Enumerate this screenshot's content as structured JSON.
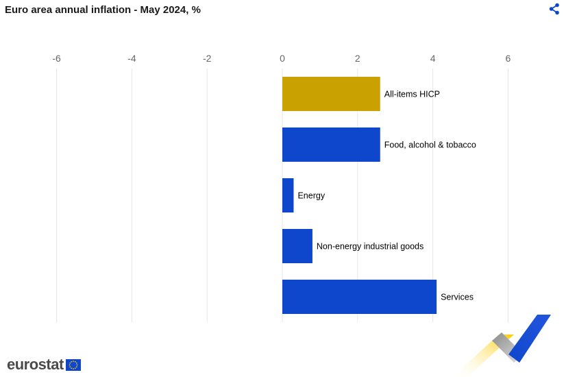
{
  "header": {
    "title": "Euro area annual inflation - May 2024, %",
    "share_icon": "share-icon"
  },
  "chart_data": {
    "type": "bar",
    "orientation": "horizontal",
    "title": "Euro area annual inflation - May 2024, %",
    "xlabel": "",
    "ylabel": "",
    "xlim": [
      -6,
      7
    ],
    "x_ticks": [
      -6,
      -4,
      -2,
      0,
      2,
      4,
      6
    ],
    "x_tick_labels": [
      "-6",
      "-4",
      "-2",
      "0",
      "2",
      "4",
      "6"
    ],
    "grid": true,
    "categories": [
      "All-items HICP",
      "Food, alcohol & tobacco",
      "Energy",
      "Non-energy industrial goods",
      "Services"
    ],
    "values": [
      2.6,
      2.6,
      0.3,
      0.8,
      4.1
    ],
    "colors": [
      "#c9a100",
      "#0e47cb",
      "#0e47cb",
      "#0e47cb",
      "#0e47cb"
    ]
  },
  "footer": {
    "logo_text": "eurostat",
    "logo_flag_icon": "eu-flag-icon"
  },
  "colors": {
    "accent": "#0e47cb",
    "highlight": "#c9a100",
    "grid": "#e6e6e6"
  }
}
